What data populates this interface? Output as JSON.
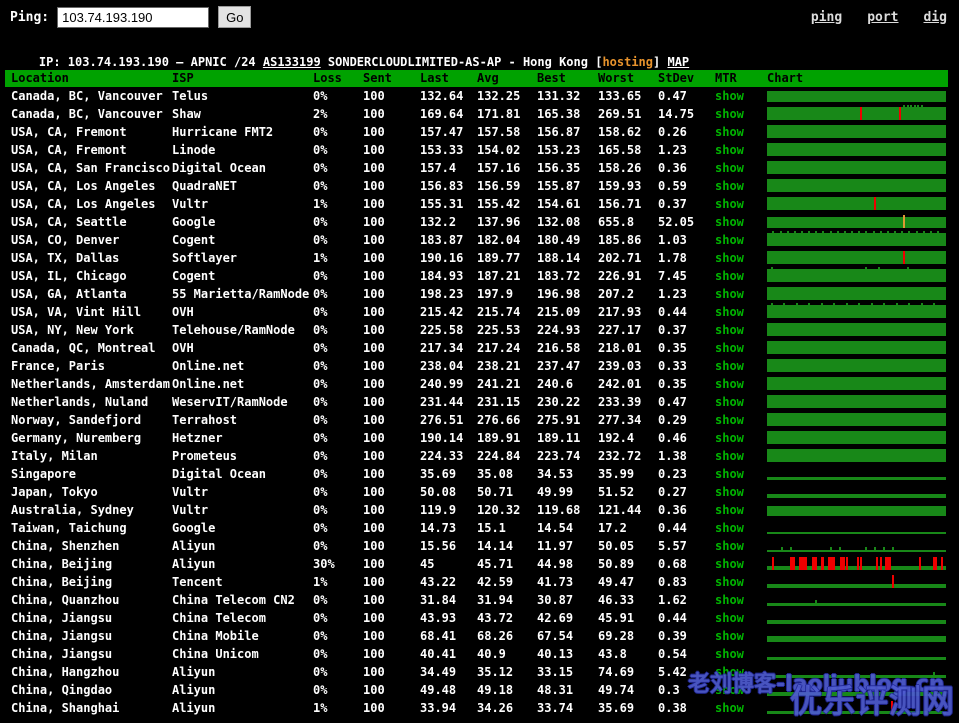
{
  "ping_bar": {
    "label": "Ping:",
    "input_value": "103.74.193.190",
    "go_label": "Go",
    "nav_links": [
      "ping",
      "port",
      "dig"
    ]
  },
  "ip_line": {
    "prefix": "IP: 103.74.193.190 – APNIC /24 ",
    "asn": "AS133199",
    "middle": " SONDERCLOUDLIMITED-AS-AP - Hong Kong [",
    "tag": "hosting",
    "suffix": "] ",
    "map": "MAP"
  },
  "watermark": {
    "line1": "老刘博客-laoliublog.cn",
    "line2": "优乐评测网"
  },
  "colors": {
    "header_bg": "#00a200",
    "chart_bar": "#188818",
    "loss_mark": "#ef0000",
    "spike_mark": "#dd9933",
    "show_link": "#00b500",
    "nav_link": "#dcdcdc",
    "hosting_tag": "#e8932c",
    "watermark": "#4f5cd0"
  },
  "chart_data": {
    "type": "table",
    "title": "Ping results per location (bars = latency over time, red = packet loss)",
    "headers": [
      "Location",
      "ISP",
      "Loss",
      "Sent",
      "Last",
      "Avg",
      "Best",
      "Worst",
      "StDev",
      "MTR",
      "Chart"
    ],
    "rows": [
      {
        "location": "Canada, BC, Vancouver",
        "isp": "Telus",
        "loss": "0%",
        "sent": "100",
        "last": "132.64",
        "avg": "132.25",
        "best": "131.32",
        "worst": "133.65",
        "stdev": "0.47",
        "mtr": "show",
        "chart": {
          "marks": [],
          "spikes": []
        }
      },
      {
        "location": "Canada, BC, Vancouver",
        "isp": "Shaw",
        "loss": "2%",
        "sent": "100",
        "last": "169.64",
        "avg": "171.81",
        "best": "165.38",
        "worst": "269.51",
        "stdev": "14.75",
        "mtr": "show",
        "chart": {
          "marks": [
            [
              0.52,
              "red"
            ],
            [
              0.74,
              "red"
            ]
          ],
          "spikes": [
            0.76,
            0.78,
            0.8,
            0.82,
            0.84,
            0.86
          ]
        }
      },
      {
        "location": "USA, CA, Fremont",
        "isp": "Hurricane FMT2",
        "loss": "0%",
        "sent": "100",
        "last": "157.47",
        "avg": "157.58",
        "best": "156.87",
        "worst": "158.62",
        "stdev": "0.26",
        "mtr": "show",
        "chart": {
          "marks": [],
          "spikes": []
        }
      },
      {
        "location": "USA, CA, Fremont",
        "isp": "Linode",
        "loss": "0%",
        "sent": "100",
        "last": "153.33",
        "avg": "154.02",
        "best": "153.23",
        "worst": "165.58",
        "stdev": "1.23",
        "mtr": "show",
        "chart": {
          "marks": [],
          "spikes": []
        }
      },
      {
        "location": "USA, CA, San Francisco",
        "isp": "Digital Ocean",
        "loss": "0%",
        "sent": "100",
        "last": "157.4",
        "avg": "157.16",
        "best": "156.35",
        "worst": "158.26",
        "stdev": "0.36",
        "mtr": "show",
        "chart": {
          "marks": [],
          "spikes": []
        }
      },
      {
        "location": "USA, CA, Los Angeles",
        "isp": "QuadraNET",
        "loss": "0%",
        "sent": "100",
        "last": "156.83",
        "avg": "156.59",
        "best": "155.87",
        "worst": "159.93",
        "stdev": "0.59",
        "mtr": "show",
        "chart": {
          "marks": [],
          "spikes": []
        }
      },
      {
        "location": "USA, CA, Los Angeles",
        "isp": "Vultr",
        "loss": "1%",
        "sent": "100",
        "last": "155.31",
        "avg": "155.42",
        "best": "154.61",
        "worst": "156.71",
        "stdev": "0.37",
        "mtr": "show",
        "chart": {
          "marks": [
            [
              0.6,
              "red"
            ]
          ],
          "spikes": []
        }
      },
      {
        "location": "USA, CA, Seattle",
        "isp": "Google",
        "loss": "0%",
        "sent": "100",
        "last": "132.2",
        "avg": "137.96",
        "best": "132.08",
        "worst": "655.8",
        "stdev": "52.05",
        "mtr": "show",
        "chart": {
          "marks": [
            [
              0.76,
              "orange"
            ]
          ],
          "spikes": []
        }
      },
      {
        "location": "USA, CO, Denver",
        "isp": "Cogent",
        "loss": "0%",
        "sent": "100",
        "last": "183.87",
        "avg": "182.04",
        "best": "180.49",
        "worst": "185.86",
        "stdev": "1.03",
        "mtr": "show",
        "chart": {
          "marks": [],
          "spikes": [
            0.03,
            0.07,
            0.11,
            0.15,
            0.19,
            0.23,
            0.27,
            0.31,
            0.35,
            0.39,
            0.43,
            0.47,
            0.51,
            0.55,
            0.59,
            0.63,
            0.67,
            0.71,
            0.75,
            0.79,
            0.83,
            0.87,
            0.91,
            0.95
          ]
        }
      },
      {
        "location": "USA, TX, Dallas",
        "isp": "Softlayer",
        "loss": "1%",
        "sent": "100",
        "last": "190.16",
        "avg": "189.77",
        "best": "188.14",
        "worst": "202.71",
        "stdev": "1.78",
        "mtr": "show",
        "chart": {
          "marks": [
            [
              0.76,
              "red"
            ]
          ],
          "spikes": []
        }
      },
      {
        "location": "USA, IL, Chicago",
        "isp": "Cogent",
        "loss": "0%",
        "sent": "100",
        "last": "184.93",
        "avg": "187.21",
        "best": "183.72",
        "worst": "226.91",
        "stdev": "7.45",
        "mtr": "show",
        "chart": {
          "marks": [],
          "spikes": [
            0.02,
            0.55,
            0.62,
            0.78
          ]
        }
      },
      {
        "location": "USA, GA, Atlanta",
        "isp": "55 Marietta/RamNode",
        "loss": "0%",
        "sent": "100",
        "last": "198.23",
        "avg": "197.9",
        "best": "196.98",
        "worst": "207.2",
        "stdev": "1.23",
        "mtr": "show",
        "chart": {
          "marks": [],
          "spikes": []
        }
      },
      {
        "location": "USA, VA, Vint Hill",
        "isp": "OVH",
        "loss": "0%",
        "sent": "100",
        "last": "215.42",
        "avg": "215.74",
        "best": "215.09",
        "worst": "217.93",
        "stdev": "0.44",
        "mtr": "show",
        "chart": {
          "marks": [],
          "spikes": [
            0.02,
            0.09,
            0.16,
            0.23,
            0.3,
            0.37,
            0.44,
            0.51,
            0.58,
            0.65,
            0.72,
            0.79,
            0.86,
            0.93
          ]
        }
      },
      {
        "location": "USA, NY, New York",
        "isp": "Telehouse/RamNode",
        "loss": "0%",
        "sent": "100",
        "last": "225.58",
        "avg": "225.53",
        "best": "224.93",
        "worst": "227.17",
        "stdev": "0.37",
        "mtr": "show",
        "chart": {
          "marks": [],
          "spikes": []
        }
      },
      {
        "location": "Canada, QC, Montreal",
        "isp": "OVH",
        "loss": "0%",
        "sent": "100",
        "last": "217.34",
        "avg": "217.24",
        "best": "216.58",
        "worst": "218.01",
        "stdev": "0.35",
        "mtr": "show",
        "chart": {
          "marks": [],
          "spikes": []
        }
      },
      {
        "location": "France, Paris",
        "isp": "Online.net",
        "loss": "0%",
        "sent": "100",
        "last": "238.04",
        "avg": "238.21",
        "best": "237.47",
        "worst": "239.03",
        "stdev": "0.33",
        "mtr": "show",
        "chart": {
          "marks": [],
          "spikes": []
        }
      },
      {
        "location": "Netherlands, Amsterdam",
        "isp": "Online.net",
        "loss": "0%",
        "sent": "100",
        "last": "240.99",
        "avg": "241.21",
        "best": "240.6",
        "worst": "242.01",
        "stdev": "0.35",
        "mtr": "show",
        "chart": {
          "marks": [],
          "spikes": []
        }
      },
      {
        "location": "Netherlands, Nuland",
        "isp": "WeservIT/RamNode",
        "loss": "0%",
        "sent": "100",
        "last": "231.44",
        "avg": "231.15",
        "best": "230.22",
        "worst": "233.39",
        "stdev": "0.47",
        "mtr": "show",
        "chart": {
          "marks": [],
          "spikes": []
        }
      },
      {
        "location": "Norway, Sandefjord",
        "isp": "Terrahost",
        "loss": "0%",
        "sent": "100",
        "last": "276.51",
        "avg": "276.66",
        "best": "275.91",
        "worst": "277.34",
        "stdev": "0.29",
        "mtr": "show",
        "chart": {
          "marks": [],
          "spikes": []
        }
      },
      {
        "location": "Germany, Nuremberg",
        "isp": "Hetzner",
        "loss": "0%",
        "sent": "100",
        "last": "190.14",
        "avg": "189.91",
        "best": "189.11",
        "worst": "192.4",
        "stdev": "0.46",
        "mtr": "show",
        "chart": {
          "marks": [],
          "spikes": []
        }
      },
      {
        "location": "Italy, Milan",
        "isp": "Prometeus",
        "loss": "0%",
        "sent": "100",
        "last": "224.33",
        "avg": "224.84",
        "best": "223.74",
        "worst": "232.72",
        "stdev": "1.38",
        "mtr": "show",
        "chart": {
          "marks": [],
          "spikes": []
        }
      },
      {
        "location": "Singapore",
        "isp": "Digital Ocean",
        "loss": "0%",
        "sent": "100",
        "last": "35.69",
        "avg": "35.08",
        "best": "34.53",
        "worst": "35.99",
        "stdev": "0.23",
        "mtr": "show",
        "chart": {
          "marks": [],
          "spikes": []
        }
      },
      {
        "location": "Japan, Tokyo",
        "isp": "Vultr",
        "loss": "0%",
        "sent": "100",
        "last": "50.08",
        "avg": "50.71",
        "best": "49.99",
        "worst": "51.52",
        "stdev": "0.27",
        "mtr": "show",
        "chart": {
          "marks": [],
          "spikes": []
        }
      },
      {
        "location": "Australia, Sydney",
        "isp": "Vultr",
        "loss": "0%",
        "sent": "100",
        "last": "119.9",
        "avg": "120.32",
        "best": "119.68",
        "worst": "121.44",
        "stdev": "0.36",
        "mtr": "show",
        "chart": {
          "marks": [],
          "spikes": []
        }
      },
      {
        "location": "Taiwan, Taichung",
        "isp": "Google",
        "loss": "0%",
        "sent": "100",
        "last": "14.73",
        "avg": "15.1",
        "best": "14.54",
        "worst": "17.2",
        "stdev": "0.44",
        "mtr": "show",
        "chart": {
          "marks": [],
          "spikes": []
        }
      },
      {
        "location": "China, Shenzhen",
        "isp": "Aliyun",
        "loss": "0%",
        "sent": "100",
        "last": "15.56",
        "avg": "14.14",
        "best": "11.97",
        "worst": "50.05",
        "stdev": "5.57",
        "mtr": "show",
        "chart": {
          "marks": [],
          "spikes": [
            0.08,
            0.13,
            0.35,
            0.4,
            0.55,
            0.6,
            0.65,
            0.7
          ]
        }
      },
      {
        "location": "China, Beijing",
        "isp": "Aliyun",
        "loss": "30%",
        "sent": "100",
        "last": "45",
        "avg": "45.71",
        "best": "44.98",
        "worst": "50.89",
        "stdev": "0.68",
        "mtr": "show",
        "chart": {
          "marks": [
            [
              0.03,
              "red"
            ],
            [
              0.13,
              "red",
              5
            ],
            [
              0.18,
              "red",
              8
            ],
            [
              0.25,
              "red",
              5
            ],
            [
              0.3,
              "red",
              3
            ],
            [
              0.34,
              "red",
              7
            ],
            [
              0.41,
              "red",
              5
            ],
            [
              0.44,
              "red"
            ],
            [
              0.5,
              "red"
            ],
            [
              0.52,
              "red"
            ],
            [
              0.61,
              "red"
            ],
            [
              0.63,
              "red"
            ],
            [
              0.66,
              "red",
              4
            ],
            [
              0.68,
              "red"
            ],
            [
              0.85,
              "red"
            ],
            [
              0.93,
              "red",
              4
            ],
            [
              0.97,
              "red"
            ]
          ],
          "spikes": []
        }
      },
      {
        "location": "China, Beijing",
        "isp": "Tencent",
        "loss": "1%",
        "sent": "100",
        "last": "43.22",
        "avg": "42.59",
        "best": "41.73",
        "worst": "49.47",
        "stdev": "0.83",
        "mtr": "show",
        "chart": {
          "marks": [
            [
              0.7,
              "red"
            ]
          ],
          "spikes": []
        }
      },
      {
        "location": "China, Quanzhou",
        "isp": "China Telecom CN2",
        "loss": "0%",
        "sent": "100",
        "last": "31.84",
        "avg": "31.94",
        "best": "30.87",
        "worst": "46.33",
        "stdev": "1.62",
        "mtr": "show",
        "chart": {
          "marks": [],
          "spikes": [
            0.27
          ]
        }
      },
      {
        "location": "China, Jiangsu",
        "isp": "China Telecom",
        "loss": "0%",
        "sent": "100",
        "last": "43.93",
        "avg": "43.72",
        "best": "42.69",
        "worst": "45.91",
        "stdev": "0.44",
        "mtr": "show",
        "chart": {
          "marks": [],
          "spikes": []
        }
      },
      {
        "location": "China, Jiangsu",
        "isp": "China Mobile",
        "loss": "0%",
        "sent": "100",
        "last": "68.41",
        "avg": "68.26",
        "best": "67.54",
        "worst": "69.28",
        "stdev": "0.39",
        "mtr": "show",
        "chart": {
          "marks": [],
          "spikes": []
        }
      },
      {
        "location": "China, Jiangsu",
        "isp": "China Unicom",
        "loss": "0%",
        "sent": "100",
        "last": "40.41",
        "avg": "40.9",
        "best": "40.13",
        "worst": "43.8",
        "stdev": "0.54",
        "mtr": "show",
        "chart": {
          "marks": [],
          "spikes": []
        }
      },
      {
        "location": "China, Hangzhou",
        "isp": "Aliyun",
        "loss": "0%",
        "sent": "100",
        "last": "34.49",
        "avg": "35.12",
        "best": "33.15",
        "worst": "74.69",
        "stdev": "5.42",
        "mtr": "show",
        "chart": {
          "marks": [],
          "spikes": [
            0.93
          ]
        }
      },
      {
        "location": "China, Qingdao",
        "isp": "Aliyun",
        "loss": "0%",
        "sent": "100",
        "last": "49.48",
        "avg": "49.18",
        "best": "48.31",
        "worst": "49.74",
        "stdev": "0.3",
        "mtr": "show",
        "chart": {
          "marks": [],
          "spikes": []
        }
      },
      {
        "location": "China, Shanghai",
        "isp": "Aliyun",
        "loss": "1%",
        "sent": "100",
        "last": "33.94",
        "avg": "34.26",
        "best": "33.74",
        "worst": "35.69",
        "stdev": "0.38",
        "mtr": "show",
        "chart": {
          "marks": [
            [
              0.69,
              "red"
            ]
          ],
          "spikes": []
        }
      }
    ]
  }
}
